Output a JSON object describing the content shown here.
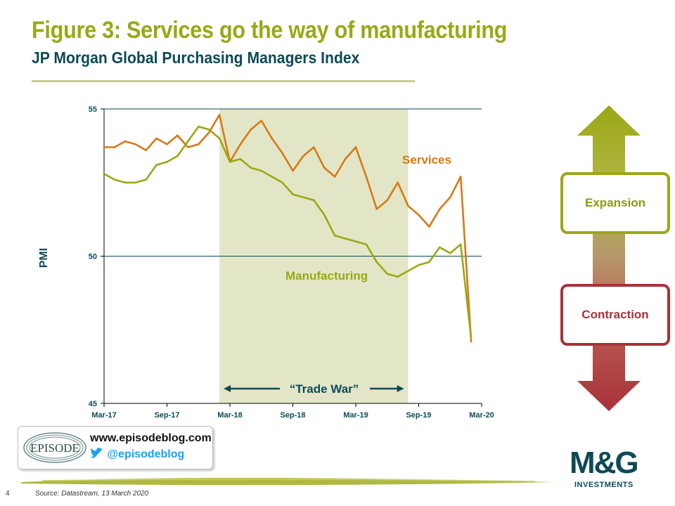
{
  "slide": {
    "title": "Figure 3: Services go the way of manufacturing",
    "subtitle": "JP Morgan Global Purchasing Managers Index",
    "page_number": "4",
    "source": "Source: Datastream, 13 March 2020"
  },
  "chart_data": {
    "type": "line",
    "title": "",
    "xlabel": "",
    "ylabel": "PMI",
    "ylim": [
      45,
      55
    ],
    "yticks": [
      "45",
      "50",
      "55"
    ],
    "xticks": [
      "Mar-17",
      "Sep-17",
      "Mar-18",
      "Sep-18",
      "Mar-19",
      "Sep-19",
      "Mar-20"
    ],
    "x": [
      "2017-03",
      "2017-04",
      "2017-05",
      "2017-06",
      "2017-07",
      "2017-08",
      "2017-09",
      "2017-10",
      "2017-11",
      "2017-12",
      "2018-01",
      "2018-02",
      "2018-03",
      "2018-04",
      "2018-05",
      "2018-06",
      "2018-07",
      "2018-08",
      "2018-09",
      "2018-10",
      "2018-11",
      "2018-12",
      "2019-01",
      "2019-02",
      "2019-03",
      "2019-04",
      "2019-05",
      "2019-06",
      "2019-07",
      "2019-08",
      "2019-09",
      "2019-10",
      "2019-11",
      "2019-12",
      "2020-01",
      "2020-02"
    ],
    "series": [
      {
        "name": "Services",
        "color": "#d57a17",
        "values": [
          53.7,
          53.7,
          53.9,
          53.8,
          53.6,
          54.0,
          53.8,
          54.1,
          53.7,
          53.8,
          54.2,
          54.8,
          53.2,
          53.8,
          54.3,
          54.6,
          54.0,
          53.5,
          52.9,
          53.4,
          53.7,
          53.0,
          52.7,
          53.3,
          53.7,
          52.7,
          51.6,
          51.9,
          52.5,
          51.7,
          51.4,
          51.0,
          51.6,
          52.0,
          52.7,
          47.1
        ]
      },
      {
        "name": "Manufacturing",
        "color": "#9aa814",
        "values": [
          52.8,
          52.6,
          52.5,
          52.5,
          52.6,
          53.1,
          53.2,
          53.4,
          53.9,
          54.4,
          54.3,
          54.0,
          53.2,
          53.3,
          53.0,
          52.9,
          52.7,
          52.5,
          52.1,
          52.0,
          51.9,
          51.4,
          50.7,
          50.6,
          50.5,
          50.4,
          49.8,
          49.4,
          49.3,
          49.5,
          49.7,
          49.8,
          50.3,
          50.1,
          50.4,
          47.2
        ]
      }
    ],
    "annotations": {
      "shaded_region": {
        "label": "“Trade War”",
        "from": "2018-02",
        "to": "2019-08"
      },
      "reference_line": 50
    },
    "grid": false,
    "legend": "inline labels"
  },
  "legend_panel": {
    "expansion_label": "Expansion",
    "contraction_label": "Contraction",
    "expansion_color": "#9aa814",
    "contraction_color": "#a8323a"
  },
  "footer": {
    "episode_logo_text": "EPISODE",
    "url": "www.episodeblog.com",
    "twitter_handle": "@episodeblog",
    "brand_logo": "M&G",
    "brand_sub": "INVESTMENTS"
  }
}
